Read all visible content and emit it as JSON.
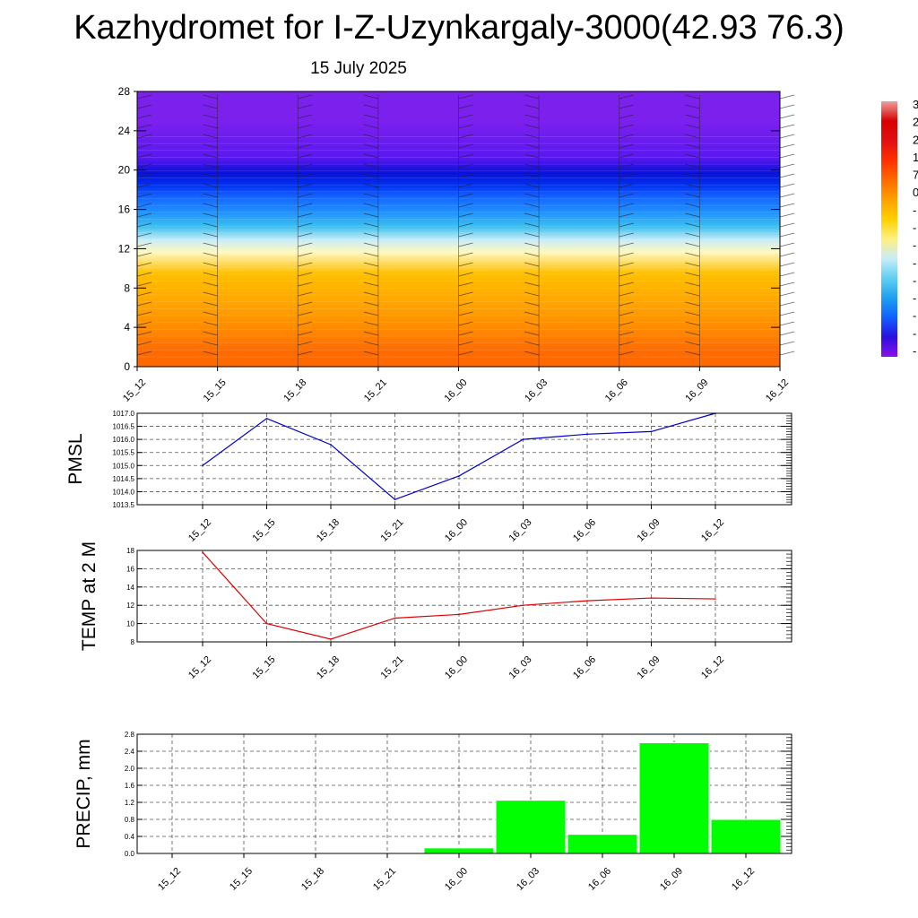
{
  "title": "Kazhydromet for I-Z-Uzynkargaly-3000(42.93 76.3)",
  "subtitle": "15 July 2025",
  "colorbar": {
    "visible_labels": [
      "3",
      "2",
      "2",
      "1",
      "7",
      "0",
      "-",
      "-",
      "-",
      "-",
      "-",
      "-",
      "-",
      "-",
      "-"
    ]
  },
  "chart_data": [
    {
      "type": "heatmap",
      "name": "cross-section",
      "x_ticks": [
        "15_12",
        "15_15",
        "15_18",
        "15_21",
        "16_00",
        "16_03",
        "16_06",
        "16_09",
        "16_12"
      ],
      "y_ticks": [
        0,
        4,
        8,
        12,
        16,
        20,
        24,
        28
      ],
      "ylim": [
        0,
        28
      ],
      "bands": [
        {
          "from": 0,
          "to": 3,
          "color": "#ff6a00"
        },
        {
          "from": 3,
          "to": 5,
          "color": "#ff8c00"
        },
        {
          "from": 5,
          "to": 8,
          "color": "#ffa500"
        },
        {
          "from": 8,
          "to": 11,
          "color": "#ffc000"
        },
        {
          "from": 11,
          "to": 12.3,
          "color": "#fff8c0"
        },
        {
          "from": 12.3,
          "to": 13.5,
          "color": "#c8ecf8"
        },
        {
          "from": 13.5,
          "to": 15,
          "color": "#3cc0f0"
        },
        {
          "from": 15,
          "to": 16.5,
          "color": "#1e90ff"
        },
        {
          "from": 16.5,
          "to": 18,
          "color": "#1565ff"
        },
        {
          "from": 18,
          "to": 19,
          "color": "#0030f0"
        },
        {
          "from": 19,
          "to": 20.5,
          "color": "#0a10d8"
        },
        {
          "from": 20.5,
          "to": 22,
          "color": "#5a18f0"
        },
        {
          "from": 22,
          "to": 28,
          "color": "#7c20ee"
        }
      ]
    },
    {
      "type": "line",
      "name": "pmsl",
      "ylabel": "PMSL",
      "categories": [
        "15_12",
        "15_15",
        "15_18",
        "15_21",
        "16_00",
        "16_03",
        "16_06",
        "16_09",
        "16_12"
      ],
      "values": [
        1015.0,
        1016.8,
        1015.8,
        1013.7,
        1014.6,
        1016.0,
        1016.2,
        1016.3,
        1017.0
      ],
      "y_ticks": [
        "1013.5",
        "1014.0",
        "1014.5",
        "1015.0",
        "1015.5",
        "1016.0",
        "1016.5",
        "1017.0"
      ],
      "ylim": [
        1013.5,
        1017.0
      ],
      "color": "#0000cc",
      "grid": true
    },
    {
      "type": "line",
      "name": "temp",
      "ylabel": "TEMP at 2 M",
      "categories": [
        "15_12",
        "15_15",
        "15_18",
        "15_21",
        "16_00",
        "16_03",
        "16_06",
        "16_09",
        "16_12"
      ],
      "values": [
        17.8,
        10.0,
        8.3,
        10.6,
        11.0,
        12.0,
        12.5,
        12.8,
        12.7
      ],
      "y_ticks": [
        "8",
        "10",
        "12",
        "14",
        "16",
        "18"
      ],
      "ylim": [
        8,
        18
      ],
      "color": "#dd0000",
      "grid": true
    },
    {
      "type": "bar",
      "name": "precip",
      "ylabel": "PRECIP, mm",
      "categories": [
        "15_12",
        "15_15",
        "15_18",
        "15_21",
        "16_00",
        "16_03",
        "16_06",
        "16_09",
        "16_12"
      ],
      "values": [
        0,
        0.02,
        0,
        0,
        0.13,
        1.25,
        0.45,
        2.6,
        0.8
      ],
      "y_ticks": [
        "0.0",
        "0.4",
        "0.8",
        "1.2",
        "1.6",
        "2.0",
        "2.4",
        "2.8"
      ],
      "ylim": [
        0,
        2.8
      ],
      "color": "#00ff00",
      "grid": true
    }
  ]
}
